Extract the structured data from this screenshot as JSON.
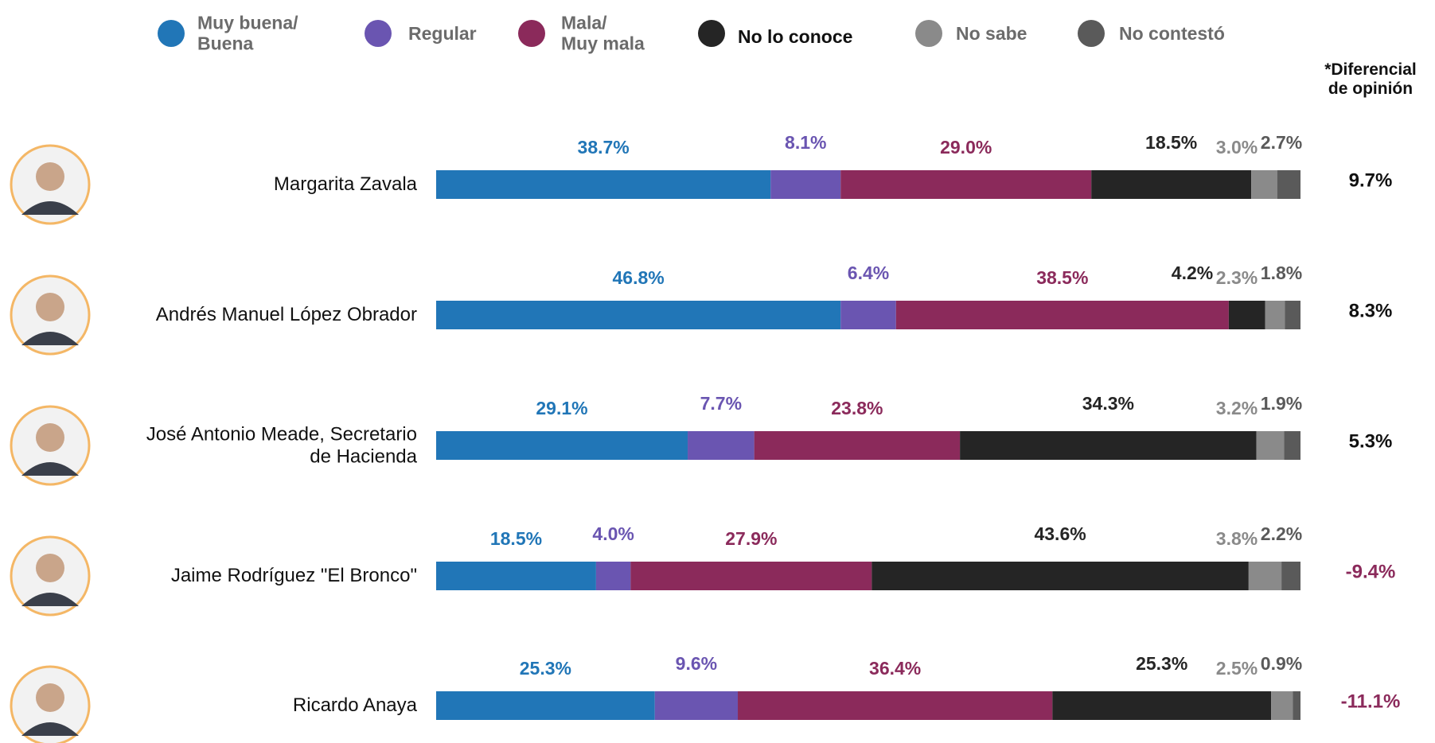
{
  "chart_data": {
    "type": "bar",
    "orientation": "horizontal",
    "stacked": true,
    "categories": [
      "Margarita Zavala",
      "Andrés Manuel López Obrador",
      "José Antonio Meade, Secretario\nde Hacienda",
      "Jaime Rodríguez \"El Bronco\"",
      "Ricardo Anaya"
    ],
    "xlim": [
      0,
      100
    ],
    "series": [
      {
        "name": "Muy buena/\nBuena",
        "color": "#2176b7",
        "values": [
          38.7,
          46.8,
          29.1,
          18.5,
          25.3
        ],
        "value_labels": [
          "38.7%",
          "46.8%",
          "29.1%",
          "18.5%",
          "25.3%"
        ]
      },
      {
        "name": "Regular",
        "color": "#6a55b1",
        "values": [
          8.1,
          6.4,
          7.7,
          4.0,
          9.6
        ],
        "value_labels": [
          "8.1%",
          "6.4%",
          "7.7%",
          "4.0%",
          "9.6%"
        ]
      },
      {
        "name": "Mala/\nMuy mala",
        "color": "#8b2a5b",
        "values": [
          29.0,
          38.5,
          23.8,
          27.9,
          36.4
        ],
        "value_labels": [
          "29.0%",
          "38.5%",
          "23.8%",
          "27.9%",
          "36.4%"
        ]
      },
      {
        "name": "No lo conoce",
        "color": "#252525",
        "values": [
          18.5,
          4.2,
          34.3,
          43.6,
          25.3
        ],
        "value_labels": [
          "18.5%",
          "4.2%",
          "34.3%",
          "43.6%",
          "25.3%"
        ]
      },
      {
        "name": "No sabe",
        "color": "#8a8a8a",
        "values": [
          3.0,
          2.3,
          3.2,
          3.8,
          2.5
        ],
        "value_labels": [
          "3.0%",
          "2.3%",
          "3.2%",
          "3.8%",
          "2.5%"
        ]
      },
      {
        "name": "No contestó",
        "color": "#5a5a5a",
        "values": [
          2.7,
          1.8,
          1.9,
          2.2,
          0.9
        ],
        "value_labels": [
          "2.7%",
          "1.8%",
          "1.9%",
          "2.2%",
          "0.9%"
        ]
      }
    ],
    "differential": {
      "title": "*Diferencial\nde opinión",
      "values": [
        9.7,
        8.3,
        5.3,
        -9.4,
        -11.1
      ],
      "value_labels": [
        "9.7%",
        "8.3%",
        "5.3%",
        "-9.4%",
        "-11.1%"
      ]
    }
  }
}
